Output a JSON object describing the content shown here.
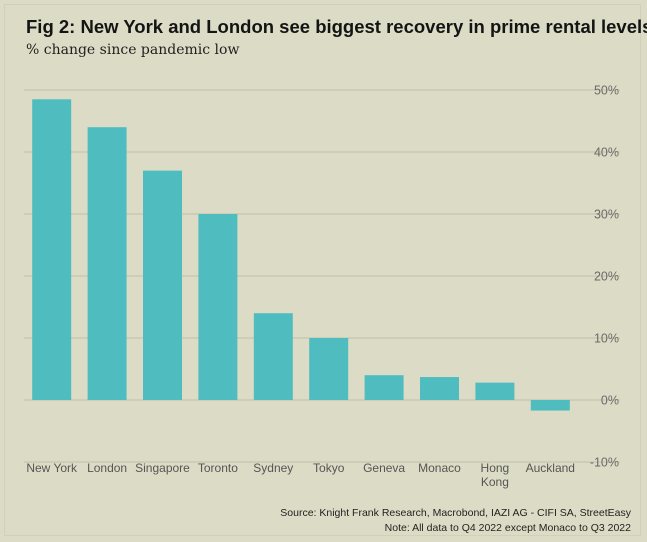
{
  "header": {
    "title": "Fig 2: New York and London see biggest recovery in prime rental levels",
    "subtitle": "% change since pandemic low"
  },
  "footer": {
    "source": "Source: Knight Frank Research, Macrobond, IAZI AG - CIFI SA, StreetEasy",
    "note": "Note: All data to Q4 2022 except Monaco to Q3 2022"
  },
  "colors": {
    "background": "#dcdcc6",
    "bar": "#4fbdbf",
    "gridline": "#bfbfa9",
    "tick_text": "#6a6a6a"
  },
  "chart_data": {
    "type": "bar",
    "categories": [
      "New York",
      "London",
      "Singapore",
      "Toronto",
      "Sydney",
      "Tokyo",
      "Geneva",
      "Monaco",
      "Hong Kong",
      "Auckland"
    ],
    "category_lines": [
      [
        "New York"
      ],
      [
        "London"
      ],
      [
        "Singapore"
      ],
      [
        "Toronto"
      ],
      [
        "Sydney"
      ],
      [
        "Tokyo"
      ],
      [
        "Geneva"
      ],
      [
        "Monaco"
      ],
      [
        "Hong",
        "Kong"
      ],
      [
        "Auckland"
      ]
    ],
    "values": [
      48.5,
      44,
      37,
      30,
      14,
      10,
      4,
      3.7,
      2.8,
      -1.7
    ],
    "ylim": [
      -10,
      50
    ],
    "yticks": [
      50,
      40,
      30,
      20,
      10,
      0,
      -10
    ],
    "ytick_labels": [
      "50%",
      "40%",
      "30%",
      "20%",
      "10%",
      "0%",
      "-10%"
    ],
    "y_axis_position": "right",
    "grid": true,
    "legend": "none"
  }
}
